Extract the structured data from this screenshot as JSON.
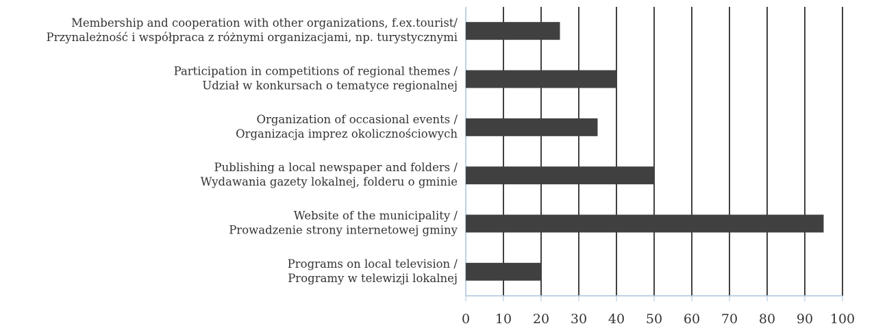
{
  "chart_data": {
    "type": "bar",
    "orientation": "horizontal",
    "categories": [
      [
        "Membership and cooperation with other organizations, f.ex.tourist/",
        "Przynależność i współpraca z różnymi organizacjami, np. turystycznymi"
      ],
      [
        "Participation in competitions of regional themes /",
        "Udział w konkursach o tematyce regionalnej"
      ],
      [
        "Organization of occasional events /",
        "Organizacja imprez okolicznościowych"
      ],
      [
        "Publishing a local newspaper and folders /",
        "Wydawania gazety lokalnej, folderu o gminie"
      ],
      [
        "Website of the municipality /",
        "Prowadzenie strony internetowej gminy"
      ],
      [
        "Programs on local television /",
        "Programy w telewizji lokalnej"
      ]
    ],
    "values": [
      25,
      40,
      35,
      50,
      95,
      20
    ],
    "color": "#404040",
    "xlim": [
      0,
      100
    ],
    "xticks": [
      0,
      10,
      20,
      30,
      40,
      50,
      60,
      70,
      80,
      90,
      100
    ],
    "grid": true
  }
}
